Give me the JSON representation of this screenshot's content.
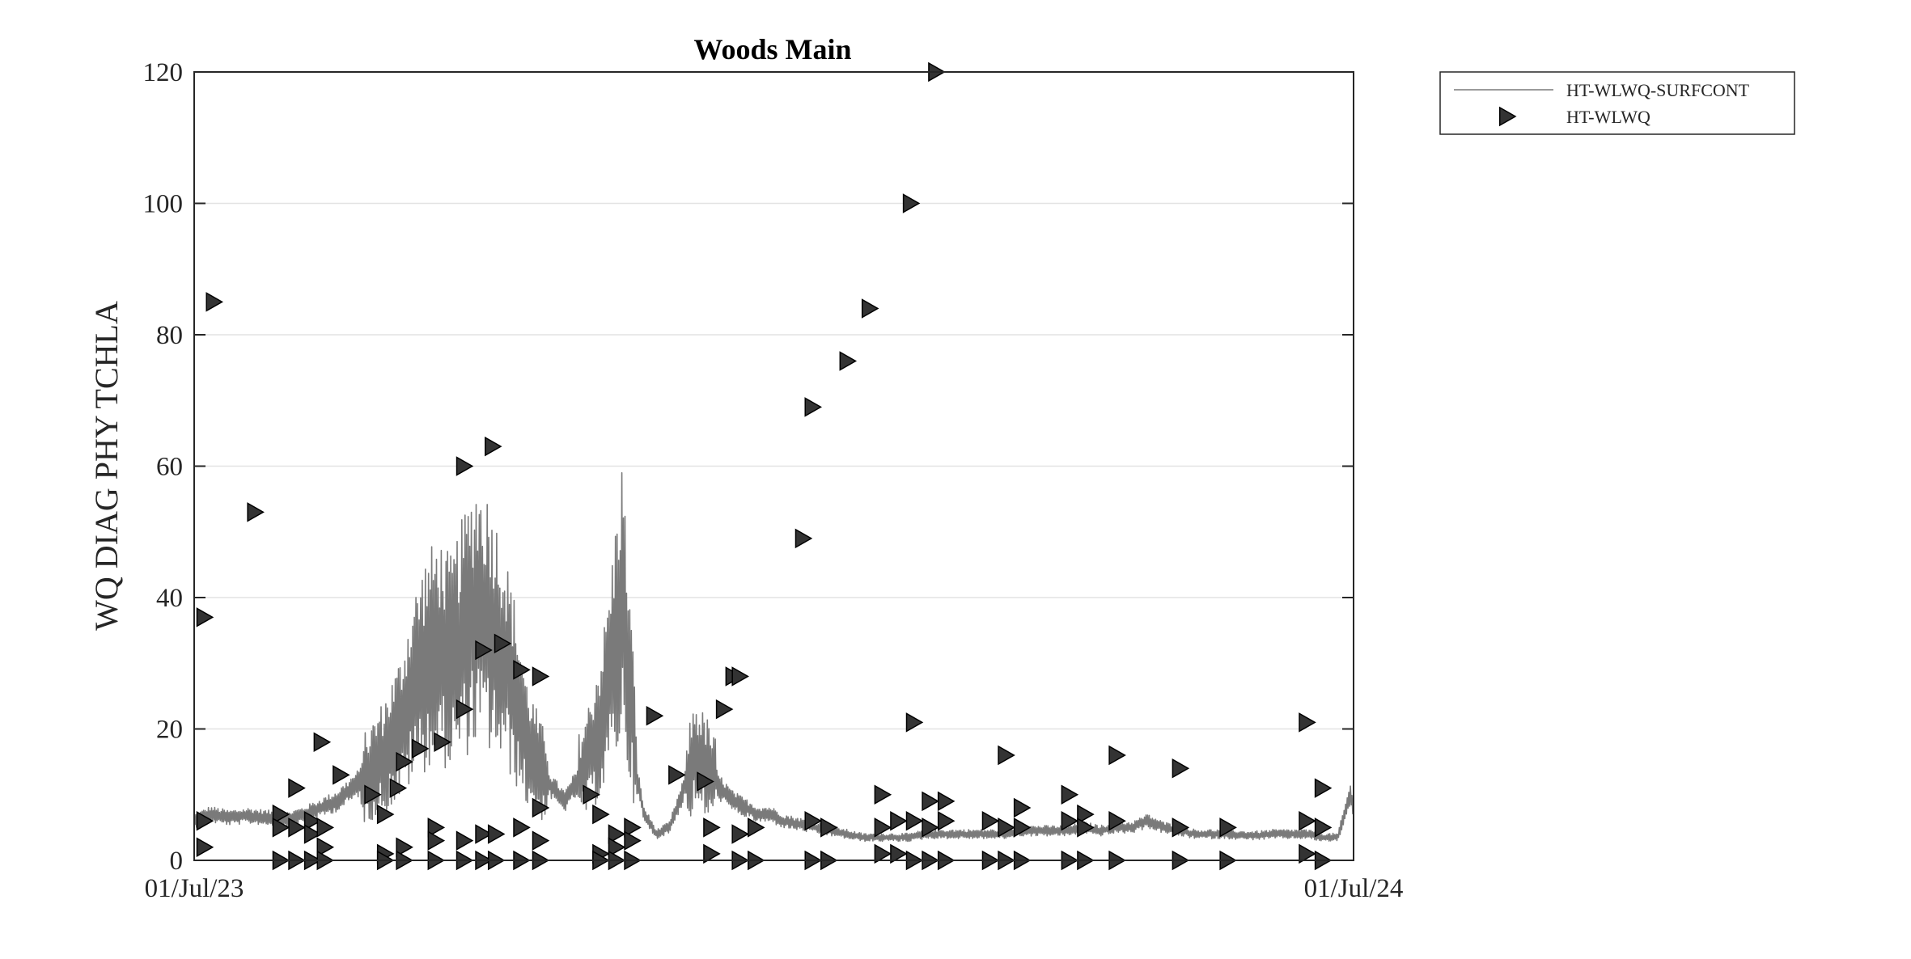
{
  "chart_data": {
    "type": "line",
    "title": "Woods Main",
    "xlabel": "",
    "ylabel": "WQ DIAG PHY TCHLA",
    "x_range": [
      "2023-07-01",
      "2024-07-01"
    ],
    "x_ticks": [
      {
        "date": "2023-07-01",
        "label": "01/Jul/23"
      },
      {
        "date": "2024-07-01",
        "label": "01/Jul/24"
      }
    ],
    "ylim": [
      0,
      120
    ],
    "y_ticks": [
      0,
      20,
      40,
      60,
      80,
      100,
      120
    ],
    "y_tick_labels": [
      "0",
      "20",
      "40",
      "60",
      "80",
      "100",
      "120"
    ],
    "grid": "horizontal",
    "legend_position": "outside-top-right",
    "colors": {
      "line": "#7a7a7a",
      "marker": "#333333",
      "grid": "#e3e3e3",
      "axis": "#262626"
    },
    "series": [
      {
        "name": "HT-WLWQ-SURFCONT",
        "type": "line",
        "x": [
          "2023-07-01",
          "2023-07-06",
          "2023-07-12",
          "2023-07-18",
          "2023-07-24",
          "2023-07-30",
          "2023-08-05",
          "2023-08-10",
          "2023-08-15",
          "2023-08-20",
          "2023-08-25",
          "2023-08-30",
          "2023-09-04",
          "2023-09-08",
          "2023-09-12",
          "2023-09-16",
          "2023-09-20",
          "2023-09-24",
          "2023-09-28",
          "2023-10-02",
          "2023-10-06",
          "2023-10-10",
          "2023-10-14",
          "2023-10-18",
          "2023-10-22",
          "2023-10-26",
          "2023-10-30",
          "2023-11-03",
          "2023-11-07",
          "2023-11-10",
          "2023-11-13",
          "2023-11-16",
          "2023-11-18",
          "2023-11-20",
          "2023-11-24",
          "2023-11-28",
          "2023-12-02",
          "2023-12-06",
          "2023-12-10",
          "2023-12-14",
          "2023-12-18",
          "2023-12-22",
          "2023-12-26",
          "2023-12-30",
          "2024-01-03",
          "2024-01-08",
          "2024-01-13",
          "2024-01-18",
          "2024-01-23",
          "2024-01-28",
          "2024-02-02",
          "2024-02-07",
          "2024-02-12",
          "2024-02-17",
          "2024-02-22",
          "2024-02-27",
          "2024-03-03",
          "2024-03-08",
          "2024-03-13",
          "2024-03-18",
          "2024-03-23",
          "2024-03-28",
          "2024-04-02",
          "2024-04-07",
          "2024-04-12",
          "2024-04-17",
          "2024-04-22",
          "2024-04-27",
          "2024-05-02",
          "2024-05-07",
          "2024-05-12",
          "2024-05-17",
          "2024-05-22",
          "2024-05-27",
          "2024-06-01",
          "2024-06-06",
          "2024-06-11",
          "2024-06-16",
          "2024-06-21",
          "2024-06-26",
          "2024-06-30",
          "2024-07-01"
        ],
        "y": [
          6,
          7,
          6.5,
          6.8,
          6.5,
          6.2,
          7,
          8,
          9,
          11,
          13,
          16,
          20,
          26,
          30,
          32,
          30,
          34,
          38,
          36,
          32,
          26,
          18,
          14,
          11,
          9,
          12,
          16,
          22,
          30,
          40,
          24,
          12,
          7,
          4,
          5,
          10,
          16,
          14,
          11,
          9,
          8,
          7,
          7,
          6,
          5.5,
          5,
          4.5,
          4,
          3.5,
          3.5,
          3.5,
          3.5,
          4,
          4,
          4,
          4,
          4,
          4,
          4.5,
          4.5,
          4.5,
          4.5,
          5,
          4.5,
          5,
          5,
          6,
          5,
          4.5,
          4,
          4,
          4,
          3.8,
          3.8,
          4,
          4,
          4,
          3.5,
          3.5,
          10,
          8
        ]
      },
      {
        "name": "HT-WLWQ",
        "type": "scatter",
        "marker": "triangle-right",
        "points": [
          {
            "x": "2023-07-04",
            "y": 37
          },
          {
            "x": "2023-07-04",
            "y": 6
          },
          {
            "x": "2023-07-04",
            "y": 2
          },
          {
            "x": "2023-07-07",
            "y": 85
          },
          {
            "x": "2023-07-20",
            "y": 53
          },
          {
            "x": "2023-07-28",
            "y": 7
          },
          {
            "x": "2023-07-28",
            "y": 5
          },
          {
            "x": "2023-07-28",
            "y": 0
          },
          {
            "x": "2023-08-02",
            "y": 11
          },
          {
            "x": "2023-08-02",
            "y": 5
          },
          {
            "x": "2023-08-02",
            "y": 0
          },
          {
            "x": "2023-08-07",
            "y": 6
          },
          {
            "x": "2023-08-07",
            "y": 4
          },
          {
            "x": "2023-08-07",
            "y": 0
          },
          {
            "x": "2023-08-10",
            "y": 18
          },
          {
            "x": "2023-08-11",
            "y": 5
          },
          {
            "x": "2023-08-11",
            "y": 2
          },
          {
            "x": "2023-08-11",
            "y": 0
          },
          {
            "x": "2023-08-16",
            "y": 13
          },
          {
            "x": "2023-08-26",
            "y": 10
          },
          {
            "x": "2023-08-30",
            "y": 7
          },
          {
            "x": "2023-08-30",
            "y": 1
          },
          {
            "x": "2023-08-30",
            "y": 0
          },
          {
            "x": "2023-09-03",
            "y": 11
          },
          {
            "x": "2023-09-05",
            "y": 15
          },
          {
            "x": "2023-09-05",
            "y": 2
          },
          {
            "x": "2023-09-05",
            "y": 0
          },
          {
            "x": "2023-09-10",
            "y": 17
          },
          {
            "x": "2023-09-15",
            "y": 5
          },
          {
            "x": "2023-09-15",
            "y": 3
          },
          {
            "x": "2023-09-15",
            "y": 0
          },
          {
            "x": "2023-09-17",
            "y": 18
          },
          {
            "x": "2023-09-24",
            "y": 60
          },
          {
            "x": "2023-09-24",
            "y": 23
          },
          {
            "x": "2023-09-24",
            "y": 3
          },
          {
            "x": "2023-09-24",
            "y": 0
          },
          {
            "x": "2023-09-30",
            "y": 32
          },
          {
            "x": "2023-09-30",
            "y": 4
          },
          {
            "x": "2023-09-30",
            "y": 0
          },
          {
            "x": "2023-10-03",
            "y": 63
          },
          {
            "x": "2023-10-04",
            "y": 4
          },
          {
            "x": "2023-10-04",
            "y": 0
          },
          {
            "x": "2023-10-06",
            "y": 33
          },
          {
            "x": "2023-10-12",
            "y": 29
          },
          {
            "x": "2023-10-12",
            "y": 5
          },
          {
            "x": "2023-10-12",
            "y": 0
          },
          {
            "x": "2023-10-18",
            "y": 28
          },
          {
            "x": "2023-10-18",
            "y": 8
          },
          {
            "x": "2023-10-18",
            "y": 3
          },
          {
            "x": "2023-10-18",
            "y": 0
          },
          {
            "x": "2023-11-03",
            "y": 10
          },
          {
            "x": "2023-11-06",
            "y": 7
          },
          {
            "x": "2023-11-06",
            "y": 1
          },
          {
            "x": "2023-11-06",
            "y": 0
          },
          {
            "x": "2023-11-11",
            "y": 4
          },
          {
            "x": "2023-11-11",
            "y": 2
          },
          {
            "x": "2023-11-11",
            "y": 0
          },
          {
            "x": "2023-11-16",
            "y": 5
          },
          {
            "x": "2023-11-16",
            "y": 3
          },
          {
            "x": "2023-11-16",
            "y": 0
          },
          {
            "x": "2023-11-23",
            "y": 22
          },
          {
            "x": "2023-11-30",
            "y": 13
          },
          {
            "x": "2023-12-09",
            "y": 12
          },
          {
            "x": "2023-12-11",
            "y": 5
          },
          {
            "x": "2023-12-11",
            "y": 1
          },
          {
            "x": "2023-12-15",
            "y": 23
          },
          {
            "x": "2023-12-18",
            "y": 28
          },
          {
            "x": "2023-12-20",
            "y": 28
          },
          {
            "x": "2023-12-20",
            "y": 4
          },
          {
            "x": "2023-12-20",
            "y": 0
          },
          {
            "x": "2023-12-25",
            "y": 5
          },
          {
            "x": "2023-12-25",
            "y": 0
          },
          {
            "x": "2024-01-09",
            "y": 49
          },
          {
            "x": "2024-01-12",
            "y": 69
          },
          {
            "x": "2024-01-12",
            "y": 6
          },
          {
            "x": "2024-01-12",
            "y": 0
          },
          {
            "x": "2024-01-17",
            "y": 5
          },
          {
            "x": "2024-01-17",
            "y": 0
          },
          {
            "x": "2024-01-23",
            "y": 76
          },
          {
            "x": "2024-01-30",
            "y": 84
          },
          {
            "x": "2024-02-03",
            "y": 10
          },
          {
            "x": "2024-02-03",
            "y": 5
          },
          {
            "x": "2024-02-03",
            "y": 1
          },
          {
            "x": "2024-02-08",
            "y": 6
          },
          {
            "x": "2024-02-08",
            "y": 1
          },
          {
            "x": "2024-02-12",
            "y": 100
          },
          {
            "x": "2024-02-13",
            "y": 21
          },
          {
            "x": "2024-02-13",
            "y": 6
          },
          {
            "x": "2024-02-13",
            "y": 0
          },
          {
            "x": "2024-02-18",
            "y": 9
          },
          {
            "x": "2024-02-18",
            "y": 5
          },
          {
            "x": "2024-02-18",
            "y": 0
          },
          {
            "x": "2024-02-20",
            "y": 120
          },
          {
            "x": "2024-02-23",
            "y": 9
          },
          {
            "x": "2024-02-23",
            "y": 6
          },
          {
            "x": "2024-02-23",
            "y": 0
          },
          {
            "x": "2024-03-08",
            "y": 6
          },
          {
            "x": "2024-03-08",
            "y": 0
          },
          {
            "x": "2024-03-13",
            "y": 16
          },
          {
            "x": "2024-03-13",
            "y": 5
          },
          {
            "x": "2024-03-13",
            "y": 0
          },
          {
            "x": "2024-03-18",
            "y": 8
          },
          {
            "x": "2024-03-18",
            "y": 5
          },
          {
            "x": "2024-03-18",
            "y": 0
          },
          {
            "x": "2024-04-02",
            "y": 10
          },
          {
            "x": "2024-04-02",
            "y": 6
          },
          {
            "x": "2024-04-02",
            "y": 0
          },
          {
            "x": "2024-04-07",
            "y": 7
          },
          {
            "x": "2024-04-07",
            "y": 5
          },
          {
            "x": "2024-04-07",
            "y": 0
          },
          {
            "x": "2024-04-17",
            "y": 16
          },
          {
            "x": "2024-04-17",
            "y": 6
          },
          {
            "x": "2024-04-17",
            "y": 0
          },
          {
            "x": "2024-05-07",
            "y": 14
          },
          {
            "x": "2024-05-07",
            "y": 5
          },
          {
            "x": "2024-05-07",
            "y": 0
          },
          {
            "x": "2024-05-22",
            "y": 5
          },
          {
            "x": "2024-05-22",
            "y": 0
          },
          {
            "x": "2024-06-16",
            "y": 21
          },
          {
            "x": "2024-06-16",
            "y": 6
          },
          {
            "x": "2024-06-16",
            "y": 1
          },
          {
            "x": "2024-06-21",
            "y": 11
          },
          {
            "x": "2024-06-21",
            "y": 5
          },
          {
            "x": "2024-06-21",
            "y": 0
          }
        ]
      }
    ]
  }
}
